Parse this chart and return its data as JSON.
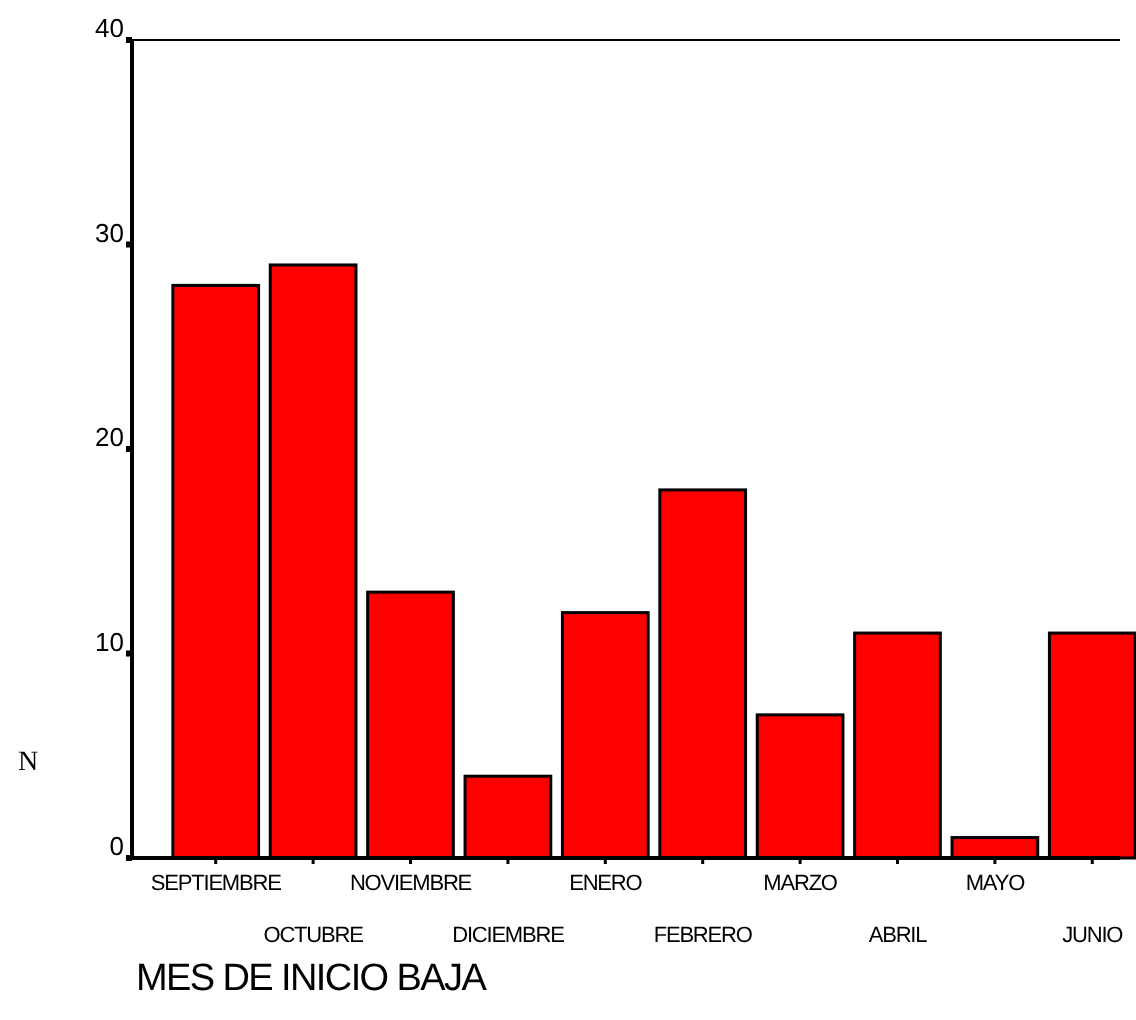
{
  "chart_data": {
    "type": "bar",
    "xlabel": "MES DE INICIO BAJA",
    "ylabel": "N",
    "categories": [
      "SEPTIEMBRE",
      "OCTUBRE",
      "NOVIEMBRE",
      "DICIEMBRE",
      "ENERO",
      "FEBRERO",
      "MARZO",
      "ABRIL",
      "MAYO",
      "JUNIO"
    ],
    "values": [
      28,
      29,
      13,
      4,
      12,
      18,
      7,
      11,
      1,
      11
    ],
    "color": "#ff0000",
    "ylim": [
      0,
      40
    ],
    "yticks": [
      0,
      10,
      20,
      30,
      40
    ],
    "grid": false
  }
}
